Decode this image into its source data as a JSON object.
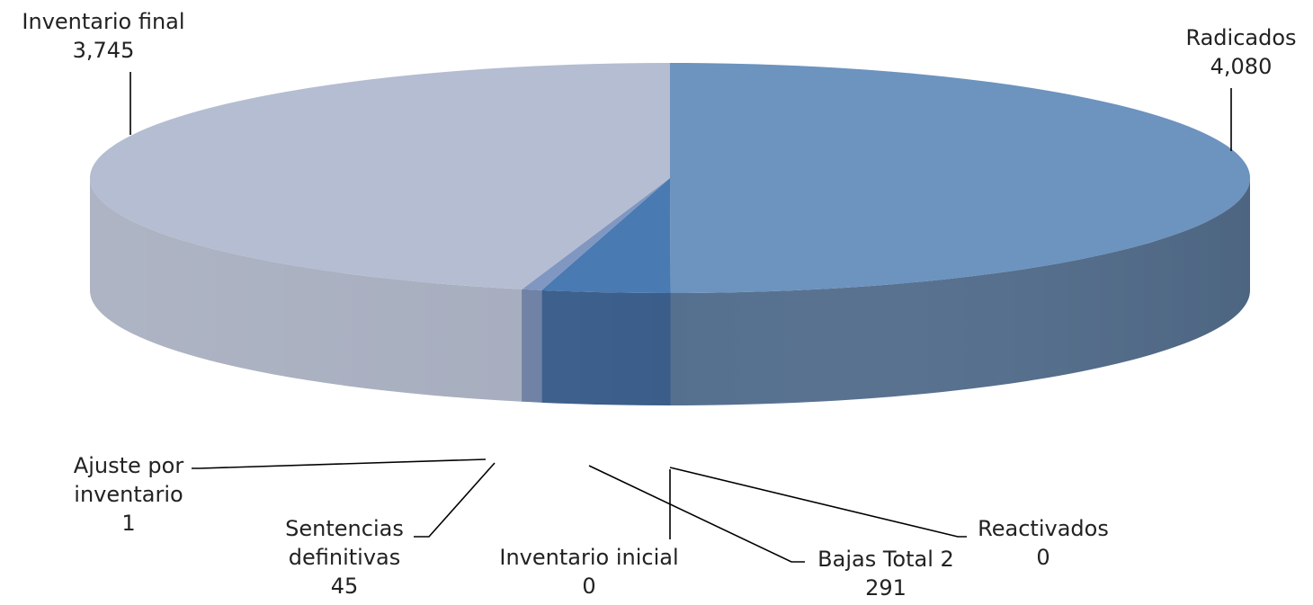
{
  "chart_data": {
    "type": "pie",
    "style": "3d",
    "title": "",
    "categories": [
      "Inventario inicial",
      "Radicados",
      "Reactivados",
      "Bajas Total 2",
      "Sentencias definitivas",
      "Ajuste por inventario",
      "Inventario final"
    ],
    "values": [
      0,
      4080,
      0,
      291,
      45,
      1,
      3745
    ],
    "value_labels": [
      "0",
      "4,080",
      "0",
      "291",
      "45",
      "1",
      "3,745"
    ],
    "label_lines": [
      [
        "Inventario inicial",
        "0"
      ],
      [
        "Radicados",
        "4,080"
      ],
      [
        "Reactivados",
        "0"
      ],
      [
        "Bajas Total 2",
        "291"
      ],
      [
        "Sentencias",
        "definitivas",
        "45"
      ],
      [
        "Ajuste por",
        "inventario",
        "1"
      ],
      [
        "Inventario final",
        "3,745"
      ]
    ],
    "colors": [
      "#4a7ab2",
      "#6d93bf",
      "#4a7ab2",
      "#4a7ab2",
      "#8097c2",
      "#8fa4c9",
      "#b4bdd1"
    ],
    "side_colors": [
      "#3a5d8a",
      "#55708f",
      "#3a5d8a",
      "#3a5d8a",
      "#6d7fa3",
      "#7887a6",
      "#a5acbd"
    ],
    "legend": "none",
    "data_labels": "outside with leader lines"
  }
}
